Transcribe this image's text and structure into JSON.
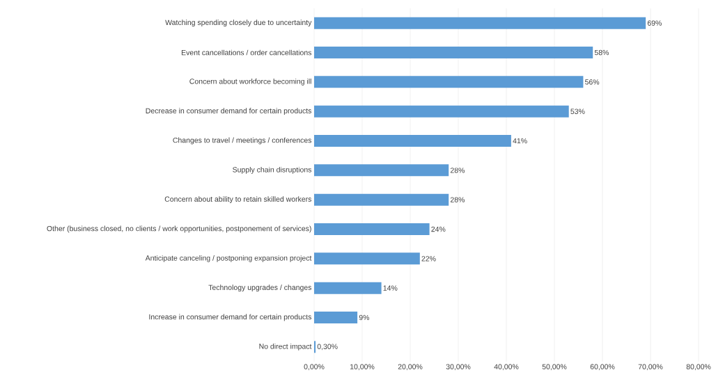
{
  "chart_data": {
    "type": "bar",
    "orientation": "horizontal",
    "categories": [
      "Watching spending closely due to uncertainty",
      "Event cancellations / order cancellations",
      "Concern about workforce becoming ill",
      "Decrease in consumer demand for certain products",
      "Changes to travel / meetings / conferences",
      "Supply chain disruptions",
      "Concern about ability to retain skilled workers",
      "Other (business closed, no clients / work opportunities, postponement of services)",
      "Anticipate canceling / postponing expansion project",
      "Technology upgrades / changes",
      "Increase in consumer demand for certain products",
      "No direct impact"
    ],
    "values": [
      69,
      58,
      56,
      53,
      41,
      28,
      28,
      24,
      22,
      14,
      9,
      0.3
    ],
    "value_labels": [
      "69%",
      "58%",
      "56%",
      "53%",
      "41%",
      "28%",
      "28%",
      "24%",
      "22%",
      "14%",
      "9%",
      "0,30%"
    ],
    "color": "#5b9bd5",
    "xlim": [
      0,
      80
    ],
    "xticks": [
      {
        "value": 0,
        "label": "0,00%"
      },
      {
        "value": 10,
        "label": "10,00%"
      },
      {
        "value": 20,
        "label": "20,00%"
      },
      {
        "value": 30,
        "label": "30,00%"
      },
      {
        "value": 40,
        "label": "40,00%"
      },
      {
        "value": 50,
        "label": "50,00%"
      },
      {
        "value": 60,
        "label": "60,00%"
      },
      {
        "value": 70,
        "label": "70,00%"
      },
      {
        "value": 80,
        "label": "80,00%"
      }
    ],
    "grid": "x"
  }
}
